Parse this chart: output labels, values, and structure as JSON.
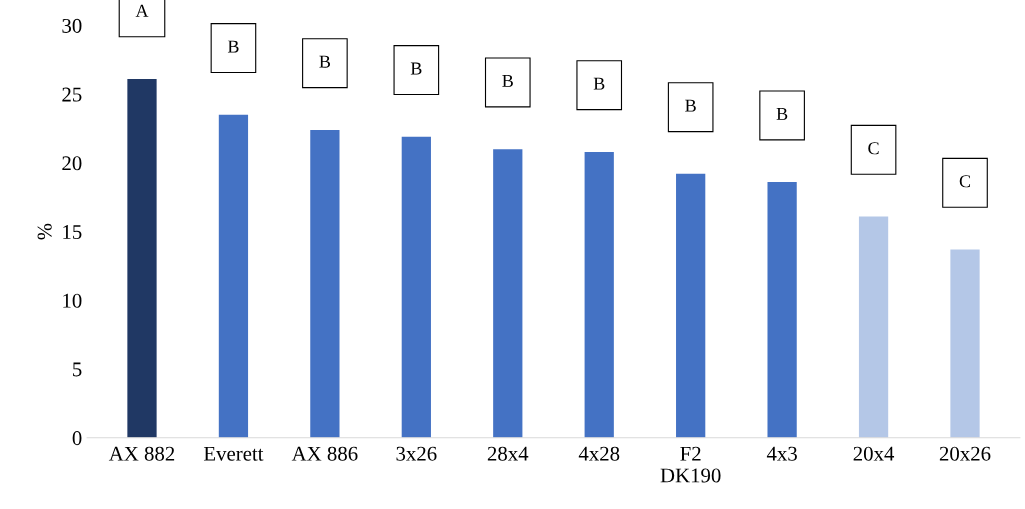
{
  "chart_data": {
    "type": "bar",
    "ylabel": "%",
    "categories": [
      "AX 882",
      "Everett",
      "AX 886",
      "3x26",
      "28x4",
      "4x28",
      "F2\nDK190",
      "4x3",
      "20x4",
      "20x26"
    ],
    "values": [
      26.1,
      23.5,
      22.4,
      21.9,
      21.0,
      20.8,
      19.2,
      18.6,
      16.1,
      13.7
    ],
    "colors": [
      "#203864",
      "#4472c4",
      "#4472c4",
      "#4472c4",
      "#4472c4",
      "#4472c4",
      "#4472c4",
      "#4472c4",
      "#b4c7e7",
      "#b4c7e7"
    ],
    "ylim": [
      0,
      30
    ],
    "yticks": [
      0,
      5,
      10,
      15,
      20,
      25,
      30
    ],
    "grid": false,
    "legend": false,
    "annotations": [
      "A",
      "B",
      "B",
      "B",
      "B",
      "B",
      "B",
      "B",
      "C",
      "C"
    ]
  }
}
